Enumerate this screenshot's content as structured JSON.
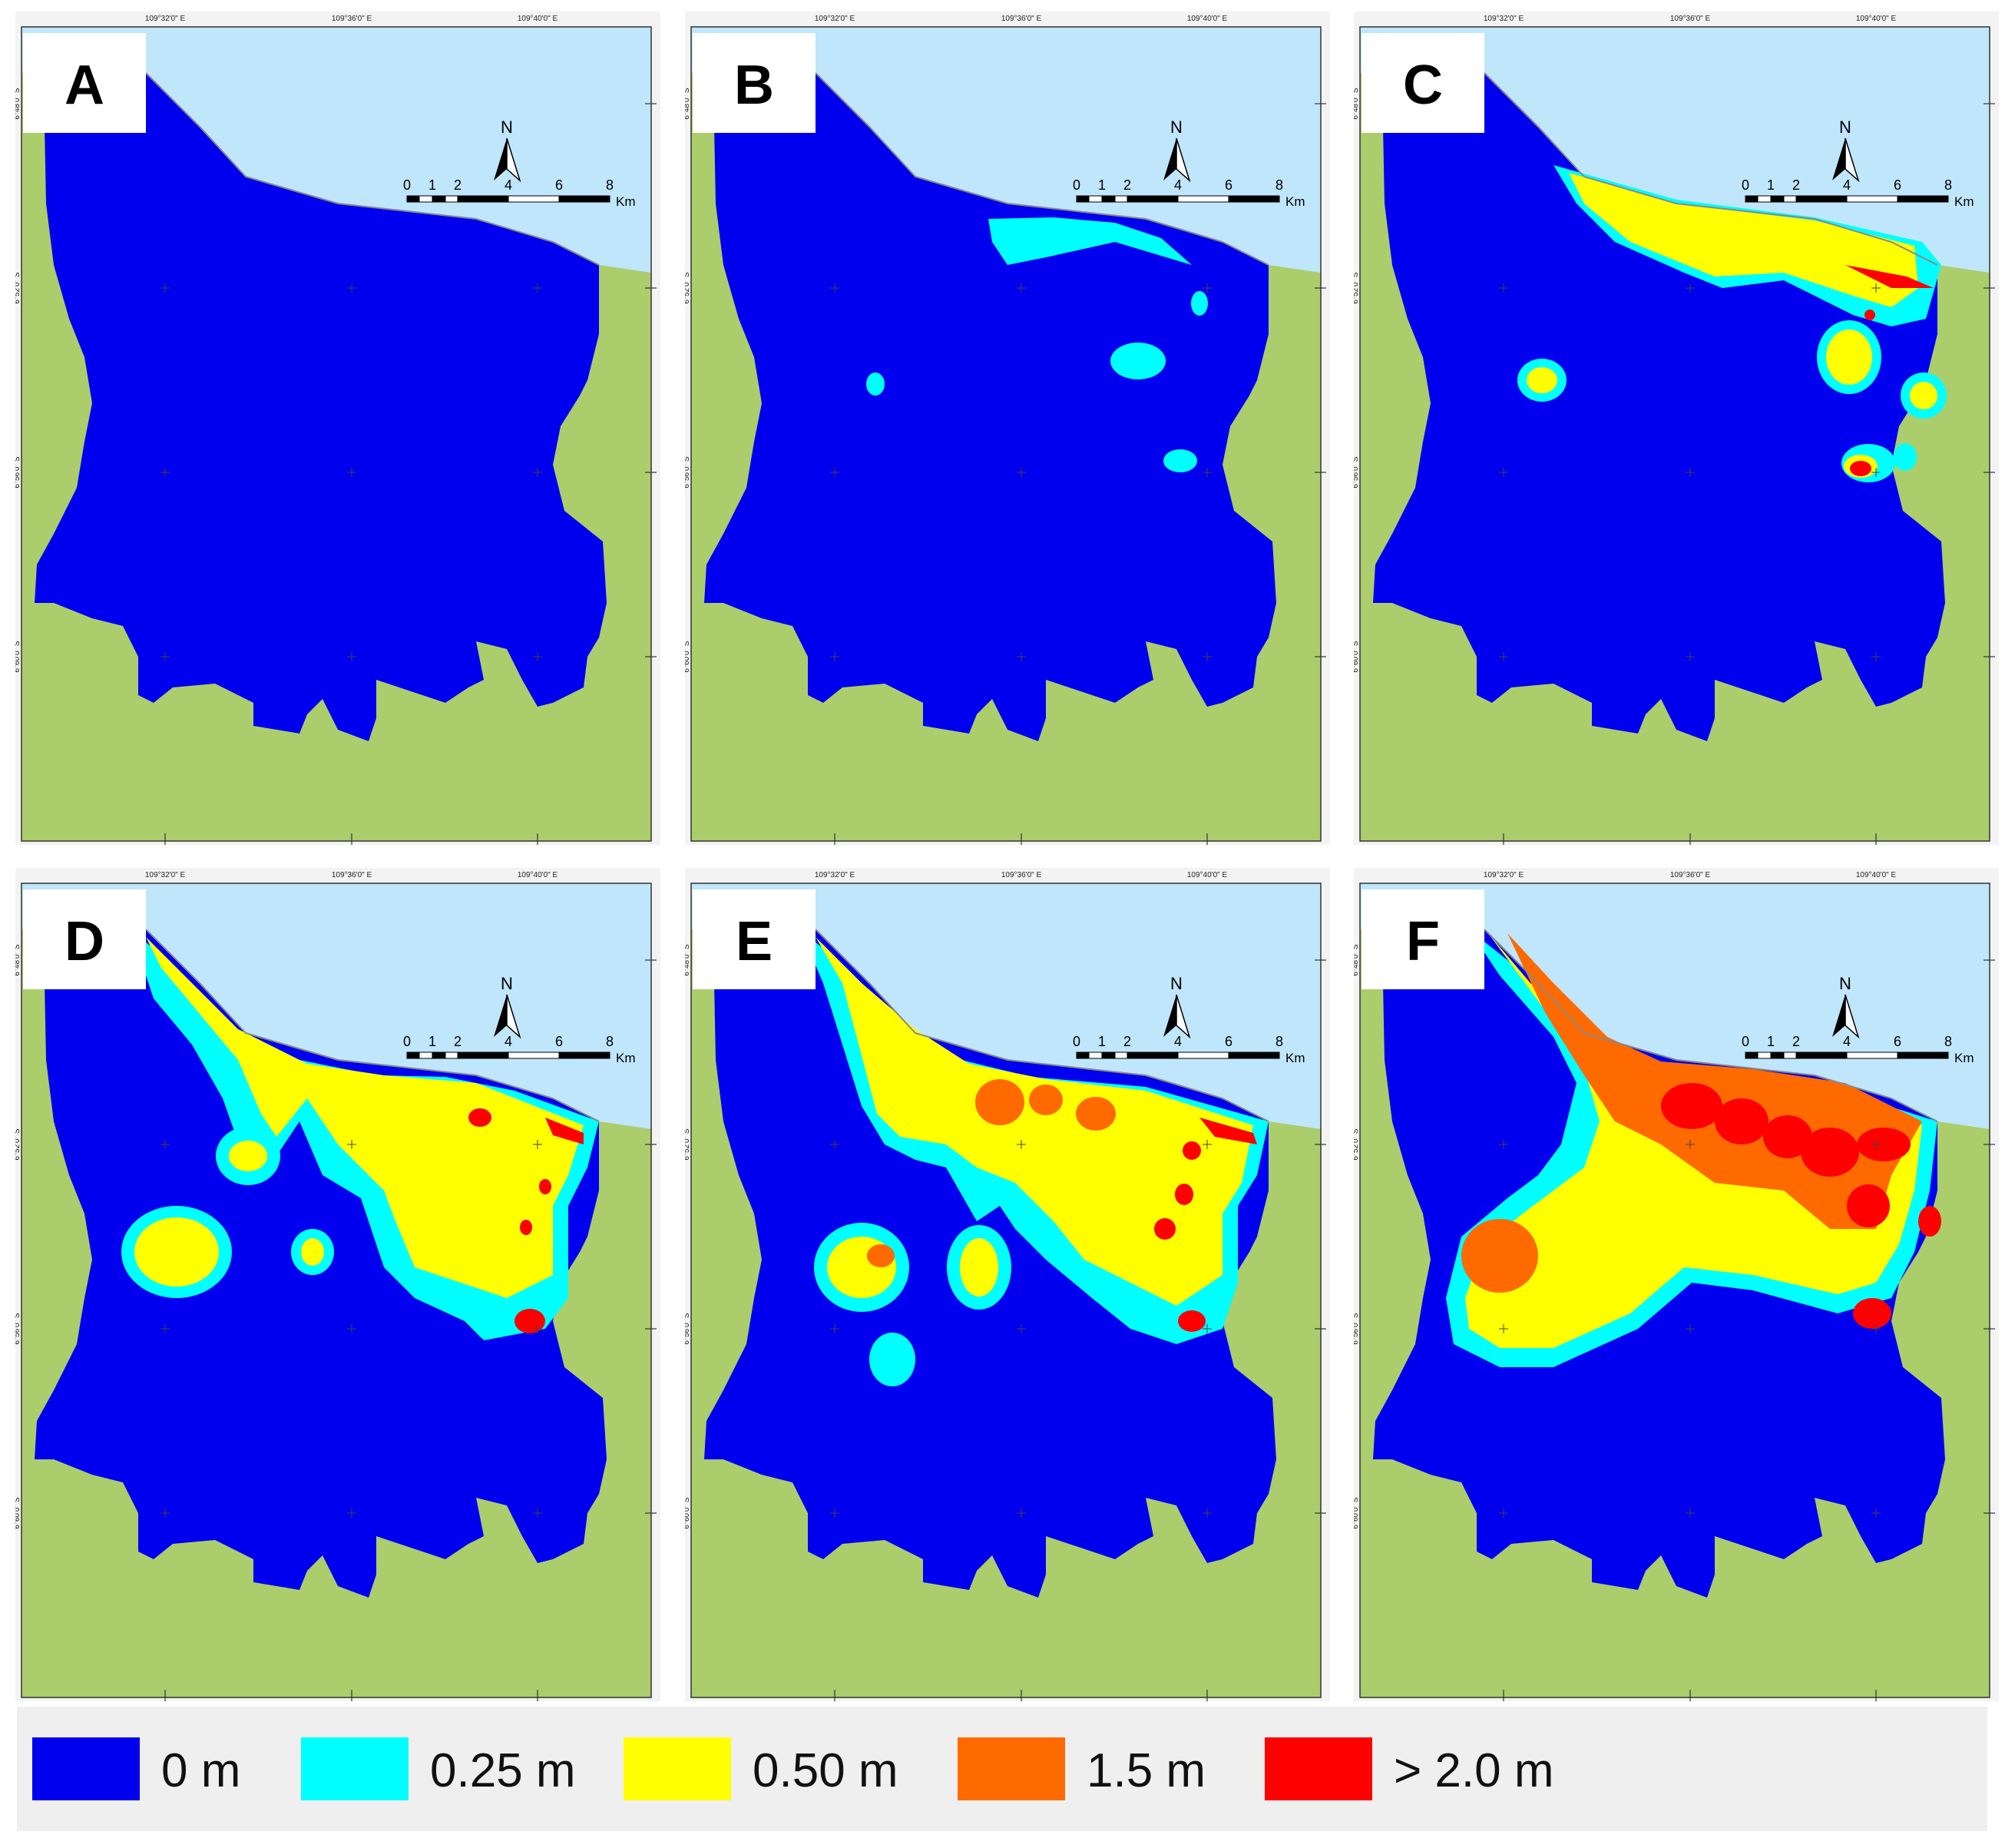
{
  "panels": [
    {
      "label": "A",
      "classes": []
    },
    {
      "label": "B",
      "classes": [
        0.25
      ]
    },
    {
      "label": "C",
      "classes": [
        0.25,
        0.5,
        2.0
      ]
    },
    {
      "label": "D",
      "classes": [
        0.25,
        0.5,
        2.0
      ]
    },
    {
      "label": "E",
      "classes": [
        0.25,
        0.5,
        1.5,
        2.0
      ]
    },
    {
      "label": "F",
      "classes": [
        0.25,
        0.5,
        1.5,
        2.0
      ]
    }
  ],
  "axes": {
    "lon_ticks": [
      "109°32'0\" E",
      "109°36'0\" E",
      "109°40'0\" E"
    ],
    "lat_ticks": [
      "6°48'0\" S",
      "6°52'0\" S",
      "6°56'0\" S",
      "6°60'0\" S"
    ]
  },
  "north_arrow": "N",
  "scale_bar": {
    "ticks": [
      "0",
      "1",
      "2",
      "4",
      "6",
      "8"
    ],
    "unit": "Km"
  },
  "legend": [
    {
      "label": "0 m",
      "color": "#0000ee"
    },
    {
      "label": "0.25 m",
      "color": "#00ffff"
    },
    {
      "label": "0.50 m",
      "color": "#ffff00"
    },
    {
      "label": "1.5 m",
      "color": "#ff6a00"
    },
    {
      "label": "> 2.0 m",
      "color": "#ff0000"
    }
  ],
  "colors": {
    "sea": "#bfe6fb",
    "land": "#abcd6b",
    "inundation_0m": "#0000ee",
    "shallow": "#33ffcc"
  }
}
